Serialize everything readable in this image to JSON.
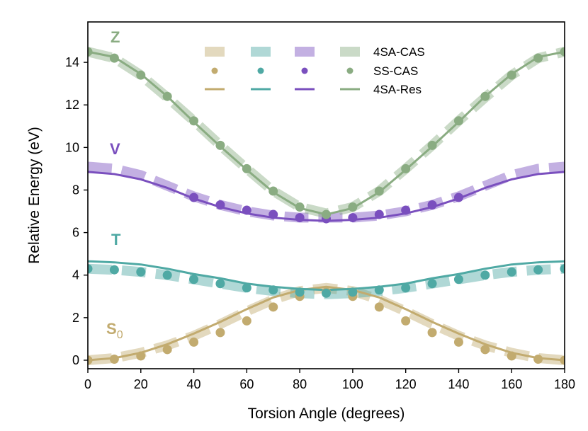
{
  "chart_data": {
    "type": "line",
    "title": "",
    "xlabel": "Torsion Angle (degrees)",
    "ylabel": "Relative Energy (eV)",
    "xlim": [
      0,
      180
    ],
    "ylim": [
      -0.4,
      15.9
    ],
    "xticks": [
      0,
      20,
      40,
      60,
      80,
      100,
      120,
      140,
      160,
      180
    ],
    "yticks": [
      0,
      2,
      4,
      6,
      8,
      10,
      12,
      14
    ],
    "grid": false,
    "legend_position": "top-center",
    "legend": [
      "4SA-CAS",
      "SS-CAS",
      "4SA-Res"
    ],
    "styles": [
      {
        "name": "4SA-CAS",
        "kind": "thick-dashed-line",
        "opacity": 0.45
      },
      {
        "name": "SS-CAS",
        "kind": "markers"
      },
      {
        "name": "4SA-Res",
        "kind": "solid-line"
      }
    ],
    "series": [
      {
        "name": "S0",
        "label_base": "S",
        "label_sub": "0",
        "color": "#c2ab6f",
        "x": [
          0,
          10,
          20,
          30,
          40,
          50,
          60,
          70,
          80,
          90,
          100,
          110,
          120,
          130,
          140,
          150,
          160,
          170,
          180
        ],
        "cas": [
          0.0,
          0.1,
          0.35,
          0.7,
          1.15,
          1.7,
          2.3,
          2.85,
          3.25,
          3.4,
          3.25,
          2.85,
          2.3,
          1.7,
          1.15,
          0.7,
          0.35,
          0.1,
          0.0
        ],
        "ss": [
          0.0,
          0.05,
          0.2,
          0.5,
          0.85,
          1.3,
          1.85,
          2.5,
          3.0,
          3.2,
          3.0,
          2.5,
          1.85,
          1.3,
          0.85,
          0.5,
          0.2,
          0.05,
          0.0
        ],
        "res": [
          0.0,
          0.1,
          0.35,
          0.75,
          1.25,
          1.8,
          2.4,
          2.95,
          3.3,
          3.45,
          3.3,
          2.95,
          2.4,
          1.8,
          1.25,
          0.75,
          0.35,
          0.1,
          0.0
        ]
      },
      {
        "name": "T",
        "label_base": "T",
        "label_sub": "",
        "color": "#4fa9a4",
        "x": [
          0,
          10,
          20,
          30,
          40,
          50,
          60,
          70,
          80,
          90,
          100,
          110,
          120,
          130,
          140,
          150,
          160,
          170,
          180
        ],
        "cas": [
          4.3,
          4.25,
          4.15,
          4.0,
          3.8,
          3.6,
          3.4,
          3.25,
          3.15,
          3.1,
          3.15,
          3.25,
          3.4,
          3.6,
          3.8,
          4.0,
          4.15,
          4.25,
          4.3
        ],
        "ss": [
          4.3,
          4.25,
          4.15,
          4.0,
          3.8,
          3.6,
          3.4,
          3.3,
          3.2,
          3.15,
          3.2,
          3.3,
          3.4,
          3.6,
          3.8,
          4.0,
          4.15,
          4.25,
          4.3
        ],
        "res": [
          4.65,
          4.6,
          4.5,
          4.3,
          4.05,
          3.85,
          3.6,
          3.45,
          3.35,
          3.3,
          3.35,
          3.45,
          3.6,
          3.85,
          4.05,
          4.3,
          4.5,
          4.6,
          4.65
        ]
      },
      {
        "name": "V",
        "label_base": "V",
        "label_sub": "",
        "color": "#7a4fbe",
        "x": [
          0,
          10,
          20,
          30,
          40,
          50,
          60,
          70,
          80,
          90,
          100,
          110,
          120,
          130,
          140,
          150,
          160,
          170,
          180
        ],
        "cas": [
          9.1,
          9.0,
          8.7,
          8.2,
          7.7,
          7.3,
          7.0,
          6.8,
          6.7,
          6.7,
          6.7,
          6.8,
          7.0,
          7.3,
          7.7,
          8.2,
          8.7,
          9.0,
          9.1
        ],
        "ss": [
          null,
          null,
          null,
          null,
          7.65,
          7.3,
          7.05,
          6.85,
          6.7,
          6.65,
          6.7,
          6.85,
          7.05,
          7.3,
          7.65,
          null,
          null,
          null,
          null
        ],
        "res": [
          8.85,
          8.75,
          8.5,
          8.1,
          7.6,
          7.2,
          6.9,
          6.7,
          6.6,
          6.55,
          6.6,
          6.7,
          6.9,
          7.2,
          7.6,
          8.1,
          8.5,
          8.75,
          8.85
        ]
      },
      {
        "name": "Z",
        "label_base": "Z",
        "label_sub": "",
        "color": "#8aac82",
        "x": [
          0,
          10,
          20,
          30,
          40,
          50,
          60,
          70,
          80,
          90,
          100,
          110,
          120,
          130,
          140,
          150,
          160,
          170,
          180
        ],
        "cas": [
          14.5,
          14.2,
          13.4,
          12.35,
          11.25,
          10.1,
          9.0,
          7.95,
          7.2,
          6.9,
          7.2,
          7.95,
          9.0,
          10.1,
          11.25,
          12.35,
          13.4,
          14.2,
          14.5
        ],
        "ss": [
          14.5,
          14.2,
          13.4,
          12.4,
          11.25,
          10.1,
          9.0,
          7.95,
          7.2,
          6.85,
          7.2,
          7.95,
          9.0,
          10.1,
          11.25,
          12.4,
          13.4,
          14.2,
          14.5
        ],
        "res": [
          14.5,
          14.25,
          13.45,
          12.4,
          11.2,
          10.05,
          8.95,
          7.9,
          7.15,
          6.85,
          7.15,
          7.9,
          8.95,
          10.05,
          11.2,
          12.4,
          13.45,
          14.25,
          14.5
        ]
      }
    ]
  }
}
